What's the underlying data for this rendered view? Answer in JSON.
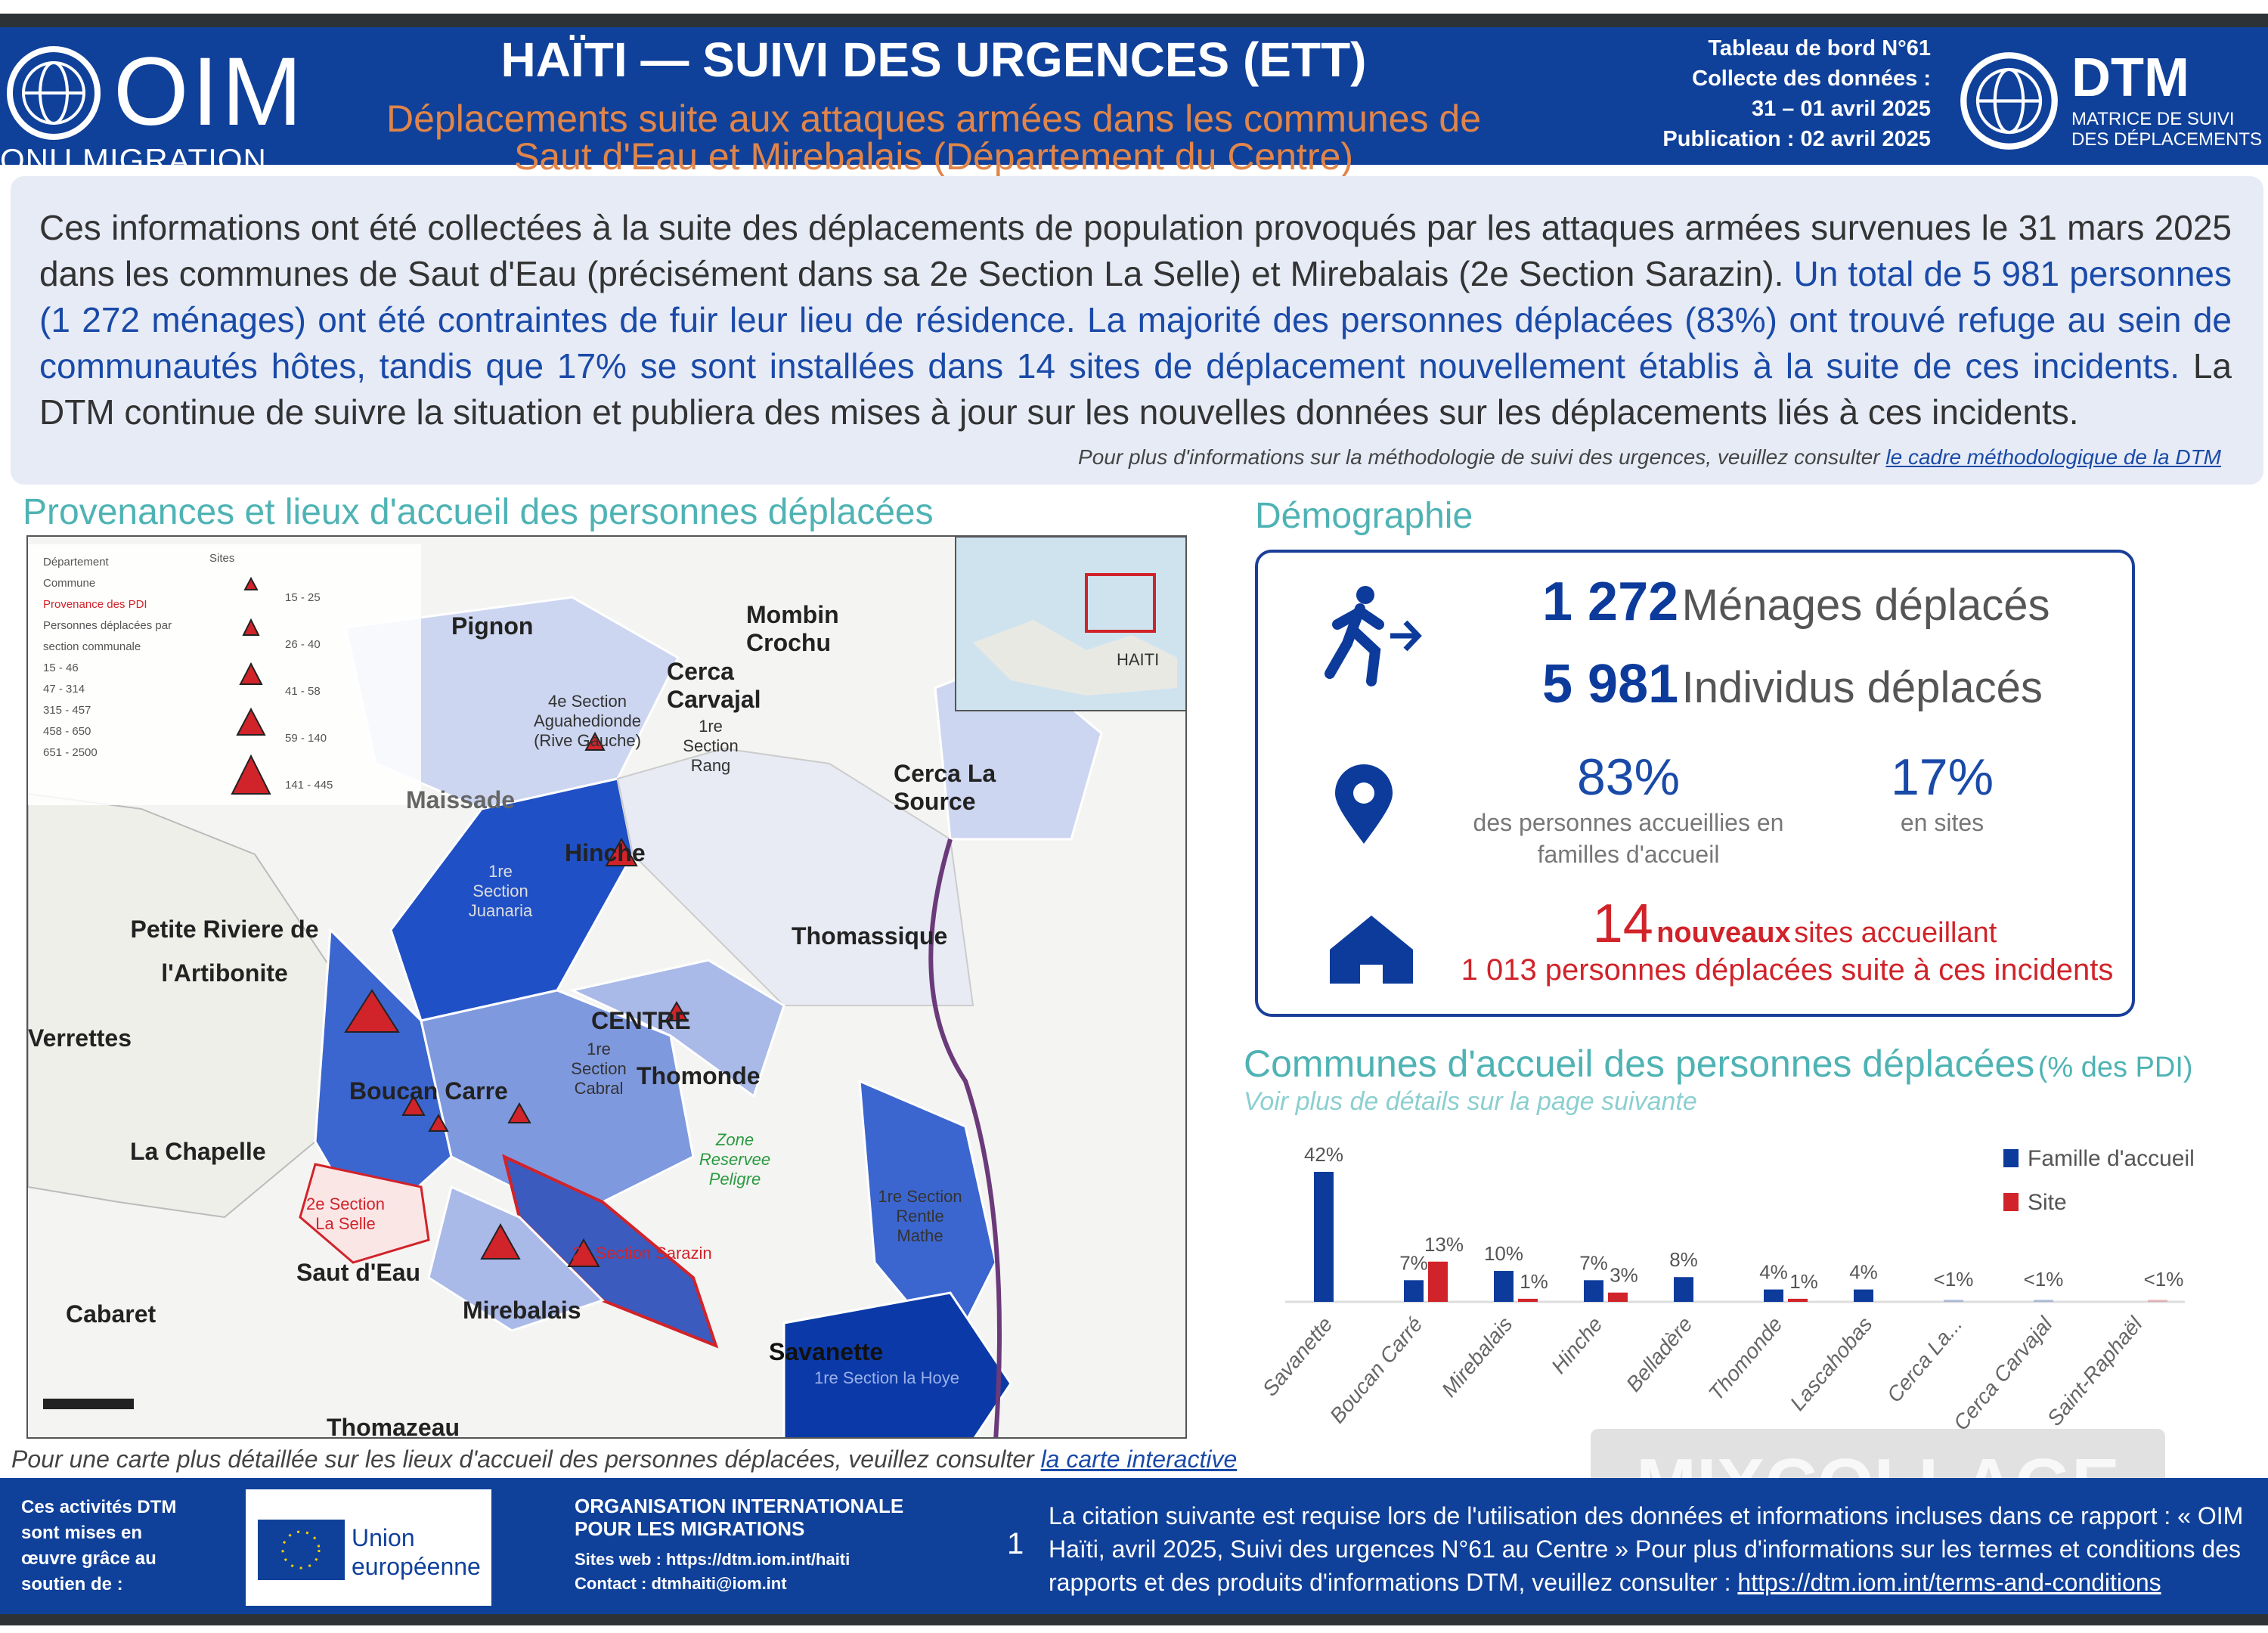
{
  "header": {
    "logo_word": "OIM",
    "logo_sub": "ONU MIGRATION",
    "title": "HAÏTI — SUIVI DES URGENCES (ETT)",
    "subtitle_line1": "Déplacements suite aux attaques armées dans les communes de",
    "subtitle_line2": "Saut d'Eau et Mirebalais (Département du Centre)",
    "dashboard": "Tableau de bord N°61",
    "collect_label": "Collecte des données :",
    "collect_dates": "31 – 01 avril 2025",
    "publication": "Publication : 02 avril 2025",
    "dtm_word": "DTM",
    "dtm_sub1": "MATRICE DE SUIVI",
    "dtm_sub2": "DES DÉPLACEMENTS"
  },
  "info": {
    "text_plain": "Ces informations ont été collectées à la suite des déplacements de population provoqués par les attaques armées survenues le 31 mars 2025 dans les communes de Saut d'Eau (précisément dans sa 2e Section La Selle) et Mirebalais (2e Section Sarazin).",
    "text_highlight": "Un total de 5 981 personnes (1 272 ménages) ont été contraintes de fuir leur lieu de résidence. La majorité des personnes déplacées (83%) ont trouvé refuge au sein de communautés hôtes, tandis que 17% se sont installées dans 14 sites de déplacement nouvellement établis à la suite de ces incidents.",
    "text_end": "La DTM continue de suivre la situation et publiera des mises à jour sur les nouvelles données sur les déplacements liés à ces incidents.",
    "note": "Pour plus d'informations sur la méthodologie de suivi des urgences, veuillez consulter",
    "note_link": "le cadre méthodologique de la DTM"
  },
  "map_section": {
    "title": "Provenances et lieux d'accueil des personnes déplacées",
    "caption": "Pour une carte plus détaillée sur les lieux d'accueil des personnes déplacées, veuillez consulter",
    "caption_link": "la carte interactive",
    "inset_label": "HAITI",
    "legend": {
      "items": [
        "Département",
        "Commune",
        "Provenance des PDI",
        "Personnes déplacées par section communale"
      ],
      "classes": [
        "15 - 46",
        "47 - 314",
        "315 - 457",
        "458 - 650",
        "651 - 2500"
      ],
      "site_label": "Sites",
      "site_classes": [
        "15 - 25",
        "26 - 40",
        "41 - 58",
        "59 - 140",
        "141 - 445"
      ]
    },
    "places": {
      "pignon": "Pignon",
      "mombin": "Mombin Crochu",
      "cerca_carvajal": "Cerca Carvajal",
      "cerca_carvajal_sec": "1re Section Rang",
      "aguahedionde": "4e Section Aguahedionde (Rive Gauche)",
      "cerca_la_source": "Cerca La Source",
      "maissade": "Maissade",
      "hinche": "Hinche",
      "juanaria": "1re Section Juanaria",
      "petite_riviere": "Petite Riviere de l'Artibonite",
      "thomassique": "Thomassique",
      "centre": "CENTRE",
      "verrettes": "Verrettes",
      "thomonde": "Thomonde",
      "cabral": "1re Section Cabral",
      "boucan_carre": "Boucan Carre",
      "la_chapelle": "La Chapelle",
      "saut_deau": "Saut d'Eau",
      "mirebalais": "Mirebalais",
      "cabaret": "Cabaret",
      "savanette": "Savanette",
      "savanette_sec": "1re Section la Hoye",
      "thomazeau": "Thomazeau",
      "rentle_mathe": "1re Section Rentle Mathe",
      "zone_peligre": "Zone Reservee Peligre",
      "sarazin": "2e Section Sarazin",
      "la_selle": "2e Section La Selle"
    }
  },
  "demographics": {
    "title": "Démographie",
    "households_num": "1 272",
    "households_label": "Ménages déplacés",
    "individuals_num": "5 981",
    "individuals_label": "Individus déplacés",
    "host_pct": "83%",
    "host_caption1": "des personnes accueillies en",
    "host_caption2": "familles d'accueil",
    "site_pct": "17%",
    "site_caption": "en sites",
    "new_sites_num": "14",
    "new_sites_bold": "nouveaux",
    "new_sites_label": "sites accueillant",
    "new_sites_people": "1 013 personnes déplacées suite à ces incidents",
    "colors": {
      "primary": "#0d3b9c",
      "accent": "#d1232a"
    }
  },
  "chart_data": {
    "type": "bar",
    "title": "Communes d'accueil des personnes déplacées",
    "title_suffix": "(% des PDI)",
    "subtitle": "Voir plus de détails sur la page suivante",
    "categories": [
      "Savanette",
      "Boucan Carré",
      "Mirebalais",
      "Hinche",
      "Belladère",
      "Thomonde",
      "Lascahobas",
      "Cerca La...",
      "Cerca Carvajal",
      "Saint-Raphaël"
    ],
    "series": [
      {
        "name": "Famille d'accueil",
        "color": "#0d3b9c",
        "values": [
          42,
          7,
          10,
          7,
          8,
          4,
          4,
          0.5,
          0.5,
          null
        ],
        "labels": [
          "42%",
          "7%",
          "10%",
          "7%",
          "8%",
          "4%",
          "4%",
          "<1%",
          "<1%",
          null
        ]
      },
      {
        "name": "Site",
        "color": "#d1232a",
        "values": [
          null,
          13,
          1,
          3,
          null,
          1,
          null,
          null,
          null,
          0.5
        ],
        "labels": [
          null,
          "13%",
          "1%",
          "3%",
          null,
          "1%",
          null,
          null,
          null,
          "<1%"
        ]
      }
    ],
    "ylim": [
      0,
      42
    ],
    "grid": false,
    "legend": "top-right"
  },
  "footer": {
    "support_text": [
      "Ces activités DTM",
      "sont mises en",
      "œuvre grâce au",
      "soutien de :"
    ],
    "eu_label1": "Union",
    "eu_label2": "européenne",
    "org_line1": "ORGANISATION INTERNATIONALE",
    "org_line2": "POUR LES MIGRATIONS",
    "site_label": "Sites web :",
    "site_url": "https://dtm.iom.int/haiti",
    "contact_label": "Contact :",
    "contact_email": "dtmhaiti@iom.int",
    "page_number": "1",
    "citation_line1": "La citation suivante est requise lors de l'utilisation des données et informations incluses dans ce rapport : « OIM",
    "citation_line2": "Haïti, avril 2025, Suivi des urgences N°61 au Centre » Pour plus d'informations sur les termes et conditions des",
    "citation_line3": "rapports et des produits d'informations DTM, veuillez consulter :",
    "citation_link": "https://dtm.iom.int/terms-and-conditions"
  },
  "watermark": "MIXCOLLAGE"
}
